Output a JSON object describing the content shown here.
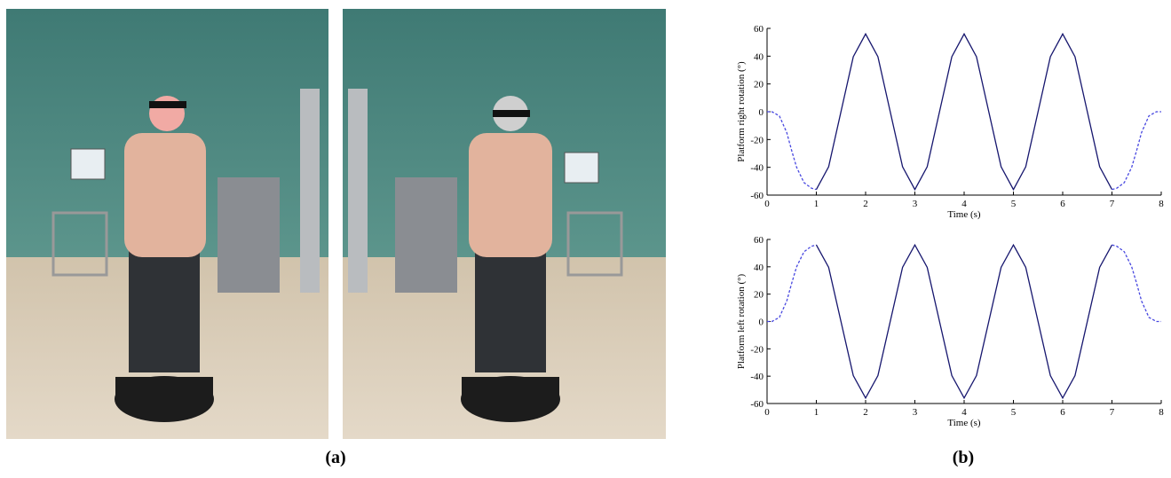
{
  "chart_data": [
    {
      "type": "line",
      "ylabel": "Platform right rotation (°)",
      "xlabel": "Time (s)",
      "xlim": [
        0,
        8
      ],
      "ylim": [
        -60,
        60
      ],
      "xticks": [
        0,
        1,
        2,
        3,
        4,
        5,
        6,
        7,
        8
      ],
      "yticks": [
        -60,
        -40,
        -20,
        0,
        20,
        40,
        60
      ],
      "series": [
        {
          "color": "#4848e0",
          "dashed": true,
          "x": [
            0,
            0.1,
            0.25,
            0.4,
            0.5,
            0.6,
            0.75,
            0.9,
            1
          ],
          "values": [
            0,
            0,
            -3,
            -15,
            -28,
            -40,
            -51,
            -55,
            -56
          ]
        },
        {
          "color": "#16166e",
          "dashed": false,
          "x": [
            1,
            1.25,
            1.5,
            1.75,
            2,
            2.25,
            2.5,
            2.75,
            3,
            3.25,
            3.5,
            3.75,
            4,
            4.25,
            4.5,
            4.75,
            5,
            5.25,
            5.5,
            5.75,
            6,
            6.25,
            6.5,
            6.75,
            7
          ],
          "values": [
            -56,
            -39.6,
            0,
            39.6,
            56,
            39.6,
            0,
            -39.6,
            -56,
            -39.6,
            0,
            39.6,
            56,
            39.6,
            0,
            -39.6,
            -56,
            -39.6,
            0,
            39.6,
            56,
            39.6,
            0,
            -39.6,
            -56
          ]
        },
        {
          "color": "#4848e0",
          "dashed": true,
          "x": [
            7,
            7.1,
            7.25,
            7.4,
            7.5,
            7.6,
            7.75,
            7.9,
            8
          ],
          "values": [
            -56,
            -55,
            -51,
            -40,
            -28,
            -15,
            -3,
            0,
            0
          ]
        }
      ]
    },
    {
      "type": "line",
      "ylabel": "Platform left rotation (°)",
      "xlabel": "Time (s)",
      "xlim": [
        0,
        8
      ],
      "ylim": [
        -60,
        60
      ],
      "xticks": [
        0,
        1,
        2,
        3,
        4,
        5,
        6,
        7,
        8
      ],
      "yticks": [
        -60,
        -40,
        -20,
        0,
        20,
        40,
        60
      ],
      "series": [
        {
          "color": "#4848e0",
          "dashed": true,
          "x": [
            0,
            0.1,
            0.25,
            0.4,
            0.5,
            0.6,
            0.75,
            0.9,
            1
          ],
          "values": [
            0,
            0,
            3,
            15,
            28,
            40,
            51,
            55,
            56
          ]
        },
        {
          "color": "#16166e",
          "dashed": false,
          "x": [
            1,
            1.25,
            1.5,
            1.75,
            2,
            2.25,
            2.5,
            2.75,
            3,
            3.25,
            3.5,
            3.75,
            4,
            4.25,
            4.5,
            4.75,
            5,
            5.25,
            5.5,
            5.75,
            6,
            6.25,
            6.5,
            6.75,
            7
          ],
          "values": [
            56,
            39.6,
            0,
            -39.6,
            -56,
            -39.6,
            0,
            39.6,
            56,
            39.6,
            0,
            -39.6,
            -56,
            -39.6,
            0,
            39.6,
            56,
            39.6,
            0,
            -39.6,
            -56,
            -39.6,
            0,
            39.6,
            56
          ]
        },
        {
          "color": "#4848e0",
          "dashed": true,
          "x": [
            7,
            7.1,
            7.25,
            7.4,
            7.5,
            7.6,
            7.75,
            7.9,
            8
          ],
          "values": [
            56,
            55,
            51,
            40,
            28,
            15,
            3,
            0,
            0
          ]
        }
      ]
    }
  ],
  "figure": {
    "captions": [
      "(a)",
      "(b)"
    ]
  }
}
